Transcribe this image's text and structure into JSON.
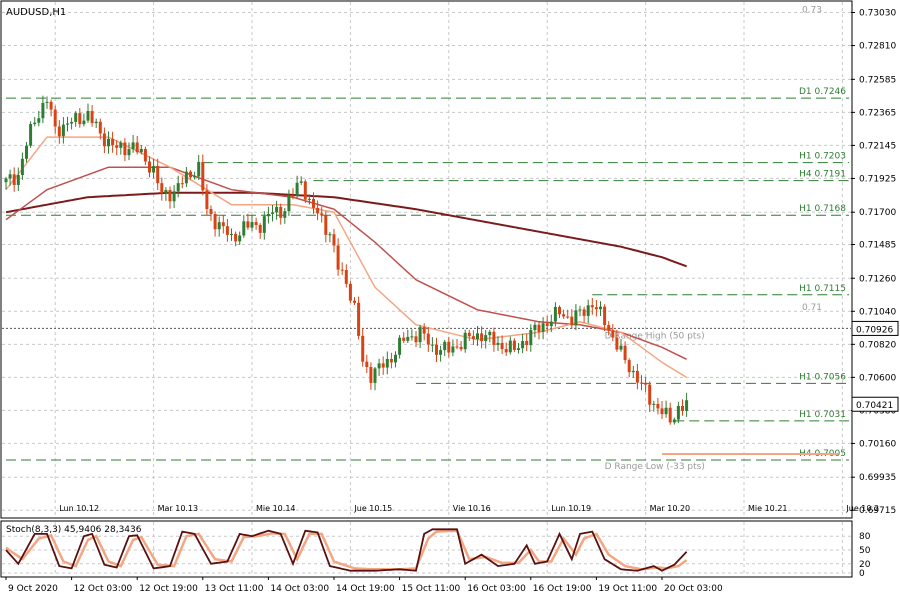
{
  "symbol": "AUDUSD,H1",
  "stoch_label": "Stoch(8,3,3) 45,9406 28,3436",
  "price_axis": [
    "0.73030",
    "0.72810",
    "0.72585",
    "0.72365",
    "0.72145",
    "0.71925",
    "0.71700",
    "0.71485",
    "0.71260",
    "0.71040",
    "0.70820",
    "0.70600",
    "0.70380",
    "0.70160",
    "0.69935",
    "0.69715"
  ],
  "price_axis_values": [
    0.7303,
    0.7281,
    0.72585,
    0.72365,
    0.72145,
    0.71925,
    0.717,
    0.71485,
    0.7126,
    0.7104,
    0.7082,
    0.706,
    0.7038,
    0.7016,
    0.69935,
    0.69715
  ],
  "stoch_axis": [
    "80",
    "50",
    "20",
    "0"
  ],
  "stoch_axis_values": [
    80,
    50,
    20,
    0
  ],
  "current_price": {
    "label": "0.70926",
    "value": 0.70926,
    "color": "#000000"
  },
  "bid_price": {
    "label": "0.70421",
    "value": 0.70421,
    "color": "#000000"
  },
  "day_labels": [
    {
      "text": "Lun 10.12",
      "bar": 12
    },
    {
      "text": "Mar 10.13",
      "bar": 36
    },
    {
      "text": "Mie 10.14",
      "bar": 60
    },
    {
      "text": "Jue 10.15",
      "bar": 84
    },
    {
      "text": "Vie 10.16",
      "bar": 108
    },
    {
      "text": "Lun 10.19",
      "bar": 132
    },
    {
      "text": "Mar 10.20",
      "bar": 156
    },
    {
      "text": "Mie 10.21",
      "bar": 180
    },
    {
      "text": "Jue 10.2",
      "bar": 204
    }
  ],
  "time_labels": [
    {
      "text": "9 Oct 2020",
      "bar": 0
    },
    {
      "text": "12 Oct 03:00",
      "bar": 16
    },
    {
      "text": "12 Oct 19:00",
      "bar": 32
    },
    {
      "text": "13 Oct 11:00",
      "bar": 48
    },
    {
      "text": "14 Oct 03:00",
      "bar": 64
    },
    {
      "text": "14 Oct 19:00",
      "bar": 80
    },
    {
      "text": "15 Oct 11:00",
      "bar": 96
    },
    {
      "text": "16 Oct 03:00",
      "bar": 112
    },
    {
      "text": "16 Oct 19:00",
      "bar": 128
    },
    {
      "text": "19 Oct 11:00",
      "bar": 144
    },
    {
      "text": "20 Oct 03:00",
      "bar": 160
    }
  ],
  "levels": [
    {
      "label": "D1 0.7246",
      "value": 0.7246,
      "from_bar": 0
    },
    {
      "label": "H1 0.7203",
      "value": 0.7203,
      "from_bar": 48
    },
    {
      "label": "H4 0.7191",
      "value": 0.7191,
      "from_bar": 75
    },
    {
      "label": "H1 0.7168",
      "value": 0.7168,
      "from_bar": 0
    },
    {
      "label": "H1 0.7115",
      "value": 0.7115,
      "from_bar": 143
    },
    {
      "label": "H1 0.7056",
      "value": 0.7056,
      "from_bar": 100
    },
    {
      "label": "H1 0.7031",
      "value": 0.7031,
      "from_bar": 163
    },
    {
      "label": "H4 0.7005",
      "value": 0.7005,
      "from_bar": 0
    }
  ],
  "annotations": [
    {
      "text": "0.73",
      "value": 0.7305,
      "align": "right"
    },
    {
      "text": "0.71",
      "value": 0.7107,
      "align": "right"
    },
    {
      "text": "D Range High (50 pts)",
      "value": 0.7088,
      "bar": 146
    },
    {
      "text": "D Range Low (-33 pts)",
      "value": 0.7001,
      "bar": 146
    }
  ],
  "range_low_line": {
    "value": 0.7009,
    "from_bar": 160,
    "to_bar": 203,
    "color": "#f4a582"
  },
  "colors": {
    "bull": "#2e7d32",
    "bear": "#d84315",
    "grid": "#c8c8c8",
    "level": "#2e7d32",
    "ma_fast": "#f4a582",
    "ma_mid": "#c0504d",
    "ma_slow": "#7b1a1a",
    "stoch_main": "#5a1010",
    "stoch_signal": "#f4a582",
    "bg": "#ffffff"
  },
  "chart_data": {
    "type": "candlestick",
    "title": "AUDUSD,H1",
    "ylim": [
      0.6967,
      0.731
    ],
    "bar_count": 205,
    "control_points": [
      [
        0,
        0.719
      ],
      [
        3,
        0.7195
      ],
      [
        5,
        0.7215
      ],
      [
        7,
        0.7232
      ],
      [
        10,
        0.7245
      ],
      [
        12,
        0.7225
      ],
      [
        16,
        0.723
      ],
      [
        20,
        0.7235
      ],
      [
        23,
        0.7222
      ],
      [
        27,
        0.7212
      ],
      [
        31,
        0.7214
      ],
      [
        34,
        0.7205
      ],
      [
        36,
        0.7198
      ],
      [
        38,
        0.7181
      ],
      [
        41,
        0.7184
      ],
      [
        45,
        0.7196
      ],
      [
        47,
        0.72
      ],
      [
        49,
        0.717
      ],
      [
        52,
        0.7162
      ],
      [
        55,
        0.7152
      ],
      [
        58,
        0.716
      ],
      [
        62,
        0.7162
      ],
      [
        65,
        0.717
      ],
      [
        68,
        0.7172
      ],
      [
        70,
        0.7182
      ],
      [
        72,
        0.7192
      ],
      [
        74,
        0.7175
      ],
      [
        77,
        0.7166
      ],
      [
        79,
        0.7155
      ],
      [
        81,
        0.7133
      ],
      [
        83,
        0.7125
      ],
      [
        85,
        0.7105
      ],
      [
        87,
        0.707
      ],
      [
        89,
        0.7062
      ],
      [
        93,
        0.707
      ],
      [
        97,
        0.7085
      ],
      [
        101,
        0.709
      ],
      [
        104,
        0.708
      ],
      [
        108,
        0.7078
      ],
      [
        112,
        0.7085
      ],
      [
        116,
        0.7089
      ],
      [
        120,
        0.7082
      ],
      [
        124,
        0.7078
      ],
      [
        128,
        0.7089
      ],
      [
        132,
        0.7097
      ],
      [
        135,
        0.7103
      ],
      [
        138,
        0.7099
      ],
      [
        141,
        0.7104
      ],
      [
        143,
        0.711
      ],
      [
        146,
        0.7097
      ],
      [
        149,
        0.7082
      ],
      [
        151,
        0.707
      ],
      [
        154,
        0.706
      ],
      [
        157,
        0.7045
      ],
      [
        160,
        0.7038
      ],
      [
        162,
        0.703
      ],
      [
        164,
        0.704
      ],
      [
        166,
        0.7042
      ]
    ],
    "ma_fast": [
      [
        0,
        0.7185
      ],
      [
        10,
        0.722
      ],
      [
        25,
        0.722
      ],
      [
        40,
        0.72
      ],
      [
        55,
        0.7175
      ],
      [
        70,
        0.7175
      ],
      [
        80,
        0.717
      ],
      [
        90,
        0.712
      ],
      [
        100,
        0.7095
      ],
      [
        115,
        0.7085
      ],
      [
        130,
        0.709
      ],
      [
        140,
        0.7097
      ],
      [
        150,
        0.709
      ],
      [
        160,
        0.707
      ],
      [
        166,
        0.706
      ]
    ],
    "ma_mid": [
      [
        0,
        0.7165
      ],
      [
        10,
        0.7185
      ],
      [
        25,
        0.72
      ],
      [
        40,
        0.72
      ],
      [
        55,
        0.7185
      ],
      [
        70,
        0.718
      ],
      [
        80,
        0.7172
      ],
      [
        90,
        0.715
      ],
      [
        100,
        0.7125
      ],
      [
        115,
        0.7105
      ],
      [
        130,
        0.7097
      ],
      [
        140,
        0.7095
      ],
      [
        150,
        0.709
      ],
      [
        160,
        0.708
      ],
      [
        166,
        0.7072
      ]
    ],
    "ma_slow": [
      [
        0,
        0.717
      ],
      [
        20,
        0.718
      ],
      [
        40,
        0.7183
      ],
      [
        60,
        0.7183
      ],
      [
        80,
        0.718
      ],
      [
        100,
        0.7172
      ],
      [
        120,
        0.7162
      ],
      [
        140,
        0.7152
      ],
      [
        150,
        0.7147
      ],
      [
        160,
        0.714
      ],
      [
        166,
        0.7134
      ]
    ],
    "stoch_main": [
      [
        0,
        50
      ],
      [
        3,
        20
      ],
      [
        7,
        85
      ],
      [
        10,
        85
      ],
      [
        13,
        15
      ],
      [
        16,
        10
      ],
      [
        19,
        80
      ],
      [
        21,
        85
      ],
      [
        24,
        18
      ],
      [
        27,
        12
      ],
      [
        30,
        80
      ],
      [
        32,
        82
      ],
      [
        36,
        10
      ],
      [
        40,
        15
      ],
      [
        43,
        90
      ],
      [
        46,
        85
      ],
      [
        50,
        20
      ],
      [
        54,
        25
      ],
      [
        57,
        85
      ],
      [
        60,
        80
      ],
      [
        64,
        92
      ],
      [
        67,
        85
      ],
      [
        70,
        20
      ],
      [
        73,
        92
      ],
      [
        76,
        88
      ],
      [
        79,
        15
      ],
      [
        84,
        5
      ],
      [
        90,
        5
      ],
      [
        96,
        8
      ],
      [
        100,
        5
      ],
      [
        102,
        85
      ],
      [
        104,
        95
      ],
      [
        110,
        95
      ],
      [
        112,
        20
      ],
      [
        116,
        40
      ],
      [
        120,
        15
      ],
      [
        124,
        20
      ],
      [
        127,
        60
      ],
      [
        129,
        20
      ],
      [
        132,
        25
      ],
      [
        135,
        85
      ],
      [
        138,
        30
      ],
      [
        140,
        85
      ],
      [
        143,
        90
      ],
      [
        146,
        30
      ],
      [
        150,
        8
      ],
      [
        154,
        5
      ],
      [
        158,
        15
      ],
      [
        160,
        5
      ],
      [
        163,
        18
      ],
      [
        166,
        46
      ]
    ],
    "stoch_signal": [
      [
        0,
        55
      ],
      [
        4,
        30
      ],
      [
        8,
        75
      ],
      [
        11,
        82
      ],
      [
        14,
        25
      ],
      [
        17,
        15
      ],
      [
        20,
        72
      ],
      [
        22,
        80
      ],
      [
        25,
        25
      ],
      [
        28,
        15
      ],
      [
        31,
        72
      ],
      [
        33,
        78
      ],
      [
        37,
        18
      ],
      [
        41,
        15
      ],
      [
        44,
        80
      ],
      [
        47,
        85
      ],
      [
        51,
        30
      ],
      [
        55,
        25
      ],
      [
        58,
        78
      ],
      [
        61,
        80
      ],
      [
        65,
        86
      ],
      [
        68,
        85
      ],
      [
        71,
        30
      ],
      [
        74,
        85
      ],
      [
        77,
        85
      ],
      [
        80,
        25
      ],
      [
        85,
        10
      ],
      [
        90,
        8
      ],
      [
        96,
        8
      ],
      [
        100,
        10
      ],
      [
        103,
        75
      ],
      [
        105,
        90
      ],
      [
        110,
        92
      ],
      [
        113,
        30
      ],
      [
        117,
        35
      ],
      [
        121,
        22
      ],
      [
        125,
        22
      ],
      [
        128,
        50
      ],
      [
        130,
        25
      ],
      [
        133,
        25
      ],
      [
        136,
        75
      ],
      [
        139,
        40
      ],
      [
        141,
        75
      ],
      [
        144,
        85
      ],
      [
        147,
        40
      ],
      [
        151,
        15
      ],
      [
        155,
        8
      ],
      [
        159,
        12
      ],
      [
        161,
        10
      ],
      [
        164,
        15
      ],
      [
        166,
        28
      ]
    ]
  }
}
